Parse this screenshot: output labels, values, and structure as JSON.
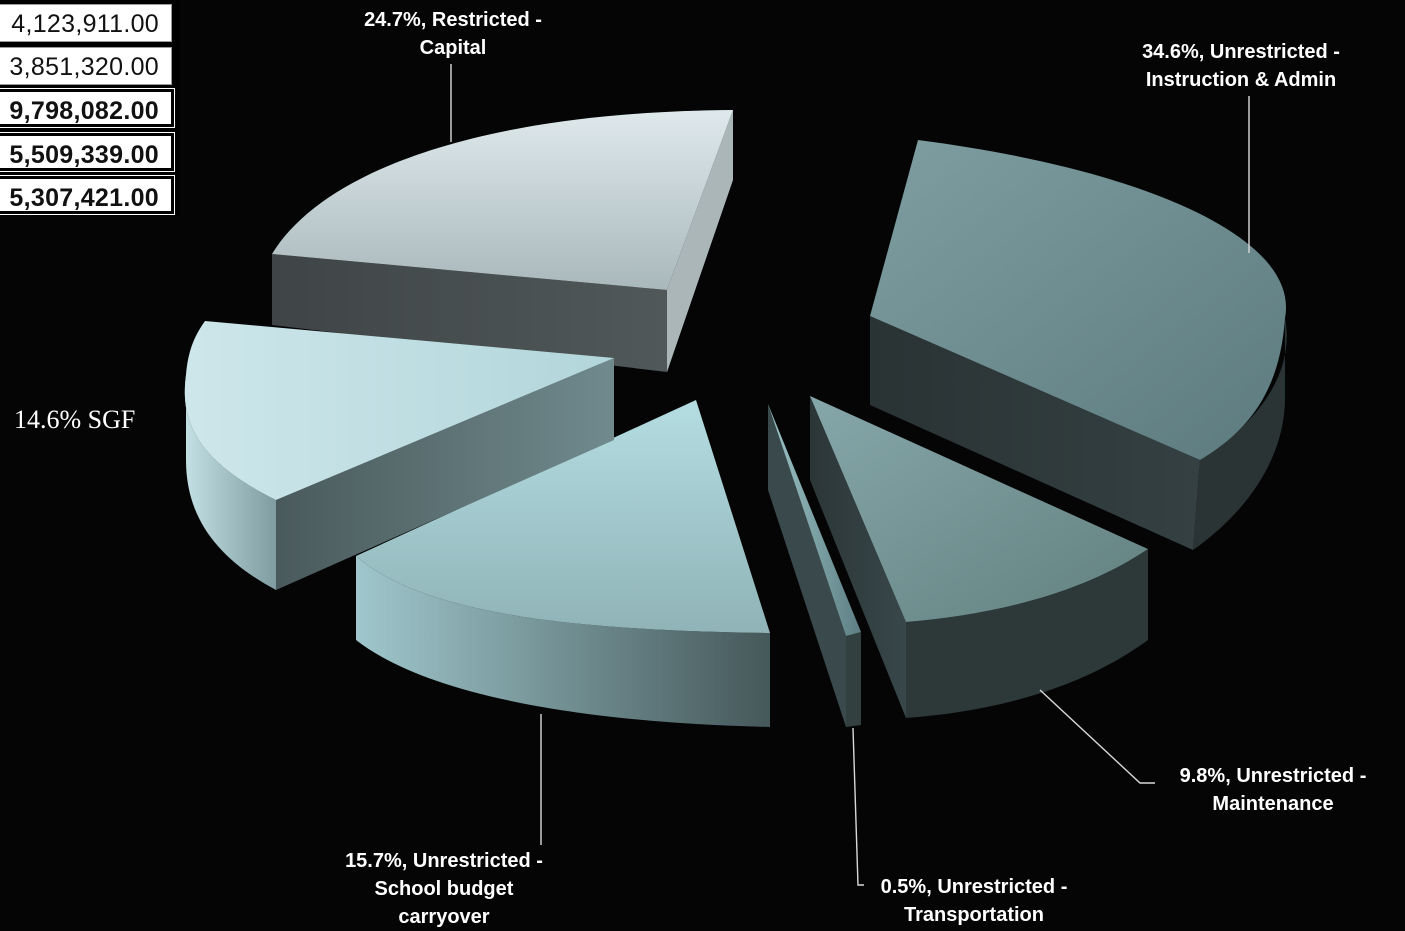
{
  "table_fragment": {
    "rows": [
      {
        "value": "4,123,911.00",
        "bold": false
      },
      {
        "value": "3,851,320.00",
        "bold": false
      },
      {
        "value": "9,798,082.00",
        "bold": true
      },
      {
        "value": "5,509,339.00",
        "bold": true
      },
      {
        "value": "5,307,421.00",
        "bold": true
      }
    ]
  },
  "colors": {
    "background": "#050505",
    "restricted_capital": "#c9d6da",
    "unrestricted_instruction_admin": "#6e8f93",
    "unrestricted_maintenance": "#7b9da0",
    "unrestricted_transportation": "#9cc4c8",
    "unrestricted_school_budget_carryover": "#9fcbd0",
    "sgf": "#b8dde2",
    "leader_line": "#d9d9d9"
  },
  "chart_data": {
    "type": "pie",
    "style": "3d-exploded",
    "slices": [
      {
        "category": "Unrestricted - Instruction & Admin",
        "value": 34.6,
        "label_line1": "34.6%, Unrestricted -",
        "label_line2": "Instruction & Admin"
      },
      {
        "category": "Unrestricted - Maintenance",
        "value": 9.8,
        "label_line1": "9.8%, Unrestricted -",
        "label_line2": "Maintenance"
      },
      {
        "category": "Unrestricted - Transportation",
        "value": 0.5,
        "label_line1": "0.5%, Unrestricted -",
        "label_line2": "Transportation"
      },
      {
        "category": "Unrestricted - School budget carryover",
        "value": 15.7,
        "label_line1": "15.7%, Unrestricted -",
        "label_line2": "School budget",
        "label_line3": "carryover"
      },
      {
        "category": "SGF",
        "value": 14.6,
        "label_line1": "14.6% SGF"
      },
      {
        "category": "Restricted - Capital",
        "value": 24.7,
        "label_line1": "24.7%, Restricted -",
        "label_line2": "Capital"
      }
    ],
    "units": "percent",
    "legend": "none"
  }
}
